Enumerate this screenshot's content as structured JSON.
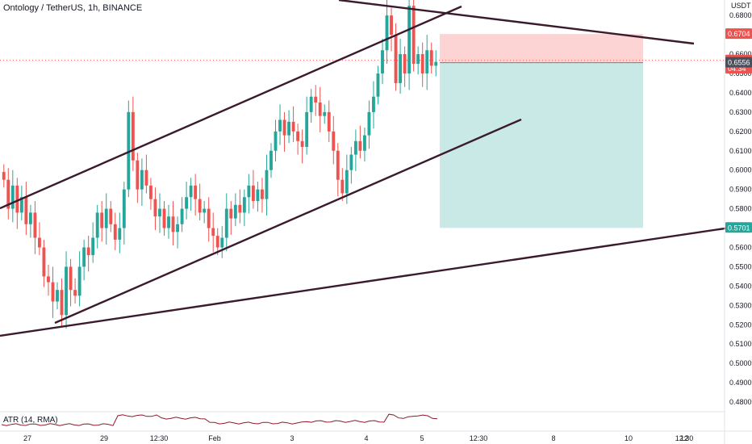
{
  "header": {
    "title": "Ontology / TetherUS, 1h, BINANCE"
  },
  "atr": {
    "label": "ATR (14, RMA)"
  },
  "chart_data": {
    "type": "candlestick",
    "title": "Ontology / TetherUS, 1h, BINANCE",
    "currency_label": "USDT",
    "y_axis": {
      "range": [
        0.475,
        0.688
      ],
      "ticks": [
        0.68,
        0.67,
        0.66,
        0.65,
        0.64,
        0.63,
        0.62,
        0.61,
        0.6,
        0.59,
        0.58,
        0.57,
        0.56,
        0.55,
        0.54,
        0.53,
        0.52,
        0.51,
        0.5,
        0.49,
        0.48
      ],
      "tick_labels": [
        "0.6800",
        "0.6700",
        "0.6600",
        "0.6500",
        "0.6400",
        "0.6300",
        "0.6200",
        "0.6100",
        "0.6000",
        "0.5900",
        "0.5800",
        "0.5700",
        "0.5600",
        "0.5500",
        "0.5400",
        "0.5300",
        "0.5200",
        "0.5100",
        "0.5000",
        "0.4900",
        "0.4800"
      ]
    },
    "x_axis": {
      "tick_labels": [
        "27",
        "29",
        "12:30",
        "Feb",
        "3",
        "4",
        "5",
        "12:30",
        "8",
        "10",
        "12",
        "12:30"
      ]
    },
    "price_badges": [
      {
        "value": 0.6704,
        "label": "0.6704",
        "color": "#ef5350"
      },
      {
        "value": 0.6568,
        "label": "0.6568",
        "color": "#ef5350"
      },
      {
        "value": 0.6525,
        "label": "04:34",
        "color": "#ef5350"
      },
      {
        "value": 0.6556,
        "label": "0.6556",
        "color": "#4a4f5c"
      },
      {
        "value": 0.5701,
        "label": "0.5701",
        "color": "#26a69a"
      }
    ],
    "position": {
      "entry": 0.6556,
      "stop": 0.6704,
      "target": 0.5701,
      "stop_color": "#ef5350",
      "target_color": "#26a69a"
    },
    "trendlines_color": "#3b1a2e",
    "colors": {
      "up": "#26a69a",
      "down": "#ef5350",
      "atr": "#8b1a2c"
    },
    "candle_closes": [
      0.595,
      0.58,
      0.592,
      0.578,
      0.586,
      0.572,
      0.578,
      0.565,
      0.56,
      0.545,
      0.542,
      0.532,
      0.538,
      0.525,
      0.55,
      0.538,
      0.535,
      0.55,
      0.56,
      0.556,
      0.565,
      0.578,
      0.57,
      0.58,
      0.572,
      0.564,
      0.57,
      0.59,
      0.63,
      0.605,
      0.59,
      0.6,
      0.592,
      0.585,
      0.576,
      0.58,
      0.57,
      0.576,
      0.568,
      0.572,
      0.58,
      0.586,
      0.592,
      0.585,
      0.578,
      0.58,
      0.57,
      0.566,
      0.56,
      0.565,
      0.58,
      0.575,
      0.582,
      0.578,
      0.586,
      0.592,
      0.584,
      0.59,
      0.585,
      0.6,
      0.61,
      0.62,
      0.626,
      0.618,
      0.625,
      0.62,
      0.615,
      0.612,
      0.63,
      0.638,
      0.635,
      0.628,
      0.63,
      0.62,
      0.61,
      0.595,
      0.588,
      0.6,
      0.608,
      0.615,
      0.61,
      0.618,
      0.63,
      0.638,
      0.65,
      0.662,
      0.68,
      0.67,
      0.645,
      0.66,
      0.65,
      0.685,
      0.655,
      0.66,
      0.65,
      0.662,
      0.654,
      0.656
    ]
  }
}
